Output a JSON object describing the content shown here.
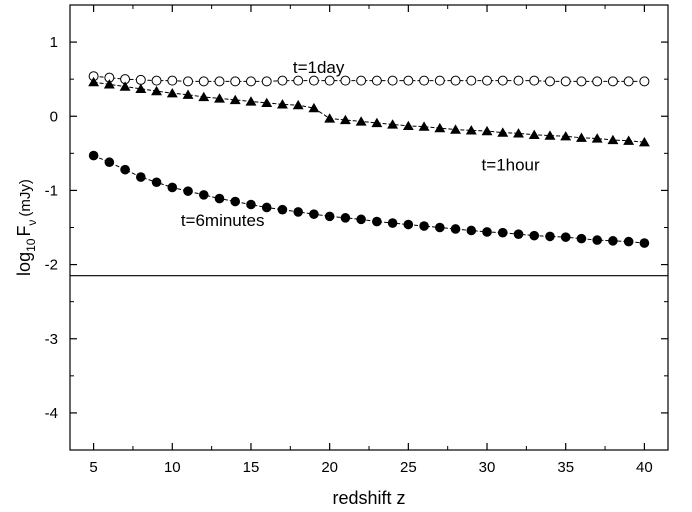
{
  "chart_data": {
    "type": "scatter",
    "xlabel": "redshift z",
    "ylabel": {
      "prefix": "log",
      "sub1": "10",
      "mid": "F",
      "sub2": "ν",
      "unit": "(mJy)"
    },
    "xlim": [
      3.5,
      41.5
    ],
    "ylim": [
      -4.5,
      1.5
    ],
    "x_ticks": [
      5,
      10,
      15,
      20,
      25,
      30,
      35,
      40
    ],
    "y_ticks": [
      1,
      0,
      -1,
      -2,
      -3,
      -4
    ],
    "x_tick_labels": [
      "5",
      "10",
      "15",
      "20",
      "25",
      "30",
      "35",
      "40"
    ],
    "y_tick_labels": [
      "1",
      "0",
      "-1",
      "-2",
      "-3",
      "-4"
    ],
    "hline": -2.15,
    "x": [
      5,
      6,
      7,
      8,
      9,
      10,
      11,
      12,
      13,
      14,
      15,
      16,
      17,
      18,
      19,
      20,
      21,
      22,
      23,
      24,
      25,
      26,
      27,
      28,
      29,
      30,
      31,
      32,
      33,
      34,
      35,
      36,
      37,
      38,
      39,
      40
    ],
    "series": [
      {
        "marker": "open-circle",
        "values": [
          0.54,
          0.52,
          0.5,
          0.49,
          0.48,
          0.48,
          0.47,
          0.47,
          0.47,
          0.47,
          0.47,
          0.47,
          0.48,
          0.48,
          0.48,
          0.48,
          0.48,
          0.48,
          0.48,
          0.48,
          0.48,
          0.48,
          0.48,
          0.48,
          0.48,
          0.48,
          0.48,
          0.48,
          0.48,
          0.47,
          0.47,
          0.47,
          0.47,
          0.47,
          0.47,
          0.47
        ]
      },
      {
        "marker": "filled-triangle",
        "values": [
          0.46,
          0.43,
          0.4,
          0.37,
          0.34,
          0.31,
          0.29,
          0.26,
          0.24,
          0.22,
          0.2,
          0.18,
          0.16,
          0.15,
          0.11,
          -0.03,
          -0.05,
          -0.07,
          -0.09,
          -0.11,
          -0.13,
          -0.14,
          -0.16,
          -0.18,
          -0.19,
          -0.2,
          -0.22,
          -0.23,
          -0.25,
          -0.26,
          -0.27,
          -0.29,
          -0.3,
          -0.32,
          -0.33,
          -0.35
        ]
      },
      {
        "marker": "filled-circle",
        "values": [
          -0.53,
          -0.62,
          -0.72,
          -0.82,
          -0.89,
          -0.96,
          -1.01,
          -1.06,
          -1.11,
          -1.15,
          -1.19,
          -1.23,
          -1.26,
          -1.29,
          -1.32,
          -1.35,
          -1.37,
          -1.39,
          -1.42,
          -1.44,
          -1.46,
          -1.48,
          -1.5,
          -1.52,
          -1.54,
          -1.56,
          -1.57,
          -1.59,
          -1.61,
          -1.62,
          -1.63,
          -1.65,
          -1.67,
          -1.68,
          -1.69,
          -1.71
        ]
      }
    ],
    "annotations": [
      {
        "text": "t=1day",
        "x": 19.3,
        "y": 0.58
      },
      {
        "text": "t=1hour",
        "x": 31.5,
        "y": -0.73
      },
      {
        "text": "t=6minutes",
        "x": 13.2,
        "y": -1.48
      }
    ]
  }
}
